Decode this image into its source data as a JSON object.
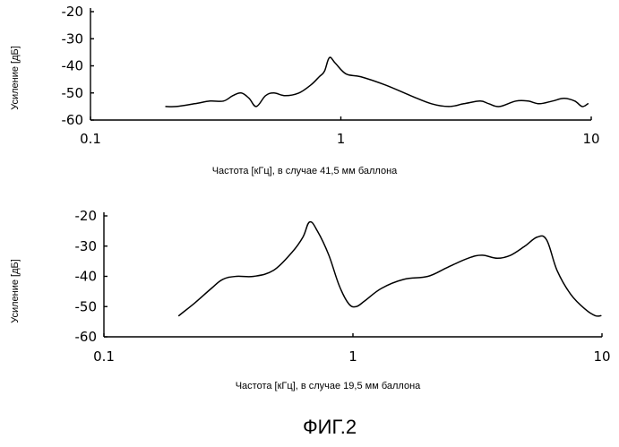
{
  "figure_label": "ФИГ.2",
  "chart_data": [
    {
      "type": "line",
      "xscale": "log",
      "xlim": [
        0.1,
        10
      ],
      "ylim": [
        -60,
        -20
      ],
      "xticks": [
        "0.1",
        "1",
        "10"
      ],
      "yticks": [
        "-20",
        "-30",
        "-40",
        "-50",
        "-60"
      ],
      "xlabel": "Частота [кГц], в случае 41,5 мм баллона",
      "ylabel": "Усиление [дБ]",
      "grid": false,
      "series": [
        {
          "x": [
            0.2,
            0.22,
            0.26,
            0.3,
            0.34,
            0.37,
            0.4,
            0.43,
            0.46,
            0.5,
            0.54,
            0.6,
            0.68,
            0.76,
            0.82,
            0.86,
            0.9,
            0.95,
            1.05,
            1.2,
            1.5,
            1.9,
            2.3,
            2.7,
            3.1,
            3.6,
            3.9,
            4.3,
            5.0,
            5.6,
            6.2,
            7.0,
            7.8,
            8.6,
            9.2,
            9.7
          ],
          "y": [
            -55,
            -55,
            -54,
            -53,
            -53,
            -51,
            -50,
            -52,
            -55,
            -51,
            -50,
            -51,
            -50,
            -47,
            -44,
            -42,
            -37,
            -39,
            -43,
            -44,
            -47,
            -51,
            -54,
            -55,
            -54,
            -53,
            -54,
            -55,
            -53,
            -53,
            -54,
            -53,
            -52,
            -53,
            -55,
            -54
          ]
        }
      ]
    },
    {
      "type": "line",
      "xscale": "log",
      "xlim": [
        0.1,
        10
      ],
      "ylim": [
        -60,
        -20
      ],
      "xticks": [
        "0.1",
        "1",
        "10"
      ],
      "yticks": [
        "-20",
        "-30",
        "-40",
        "-50",
        "-60"
      ],
      "xlabel": "Частота [кГц], в случае 19,5 мм баллона",
      "ylabel": "Усиление [дБ]",
      "grid": false,
      "series": [
        {
          "x": [
            0.2,
            0.23,
            0.27,
            0.3,
            0.34,
            0.4,
            0.48,
            0.57,
            0.63,
            0.67,
            0.72,
            0.8,
            0.88,
            0.96,
            1.03,
            1.12,
            1.3,
            1.6,
            2.0,
            2.4,
            2.9,
            3.3,
            3.8,
            4.3,
            4.9,
            5.5,
            6.0,
            6.6,
            7.5,
            8.6,
            9.4,
            9.9
          ],
          "y": [
            -53,
            -49,
            -44,
            -41,
            -40,
            -40,
            -38,
            -32,
            -27,
            -22,
            -25,
            -33,
            -43,
            -49,
            -50,
            -48,
            -44,
            -41,
            -40,
            -37,
            -34,
            -33,
            -34,
            -33,
            -30,
            -27,
            -28,
            -38,
            -46,
            -51,
            -53,
            -53
          ]
        }
      ]
    }
  ]
}
